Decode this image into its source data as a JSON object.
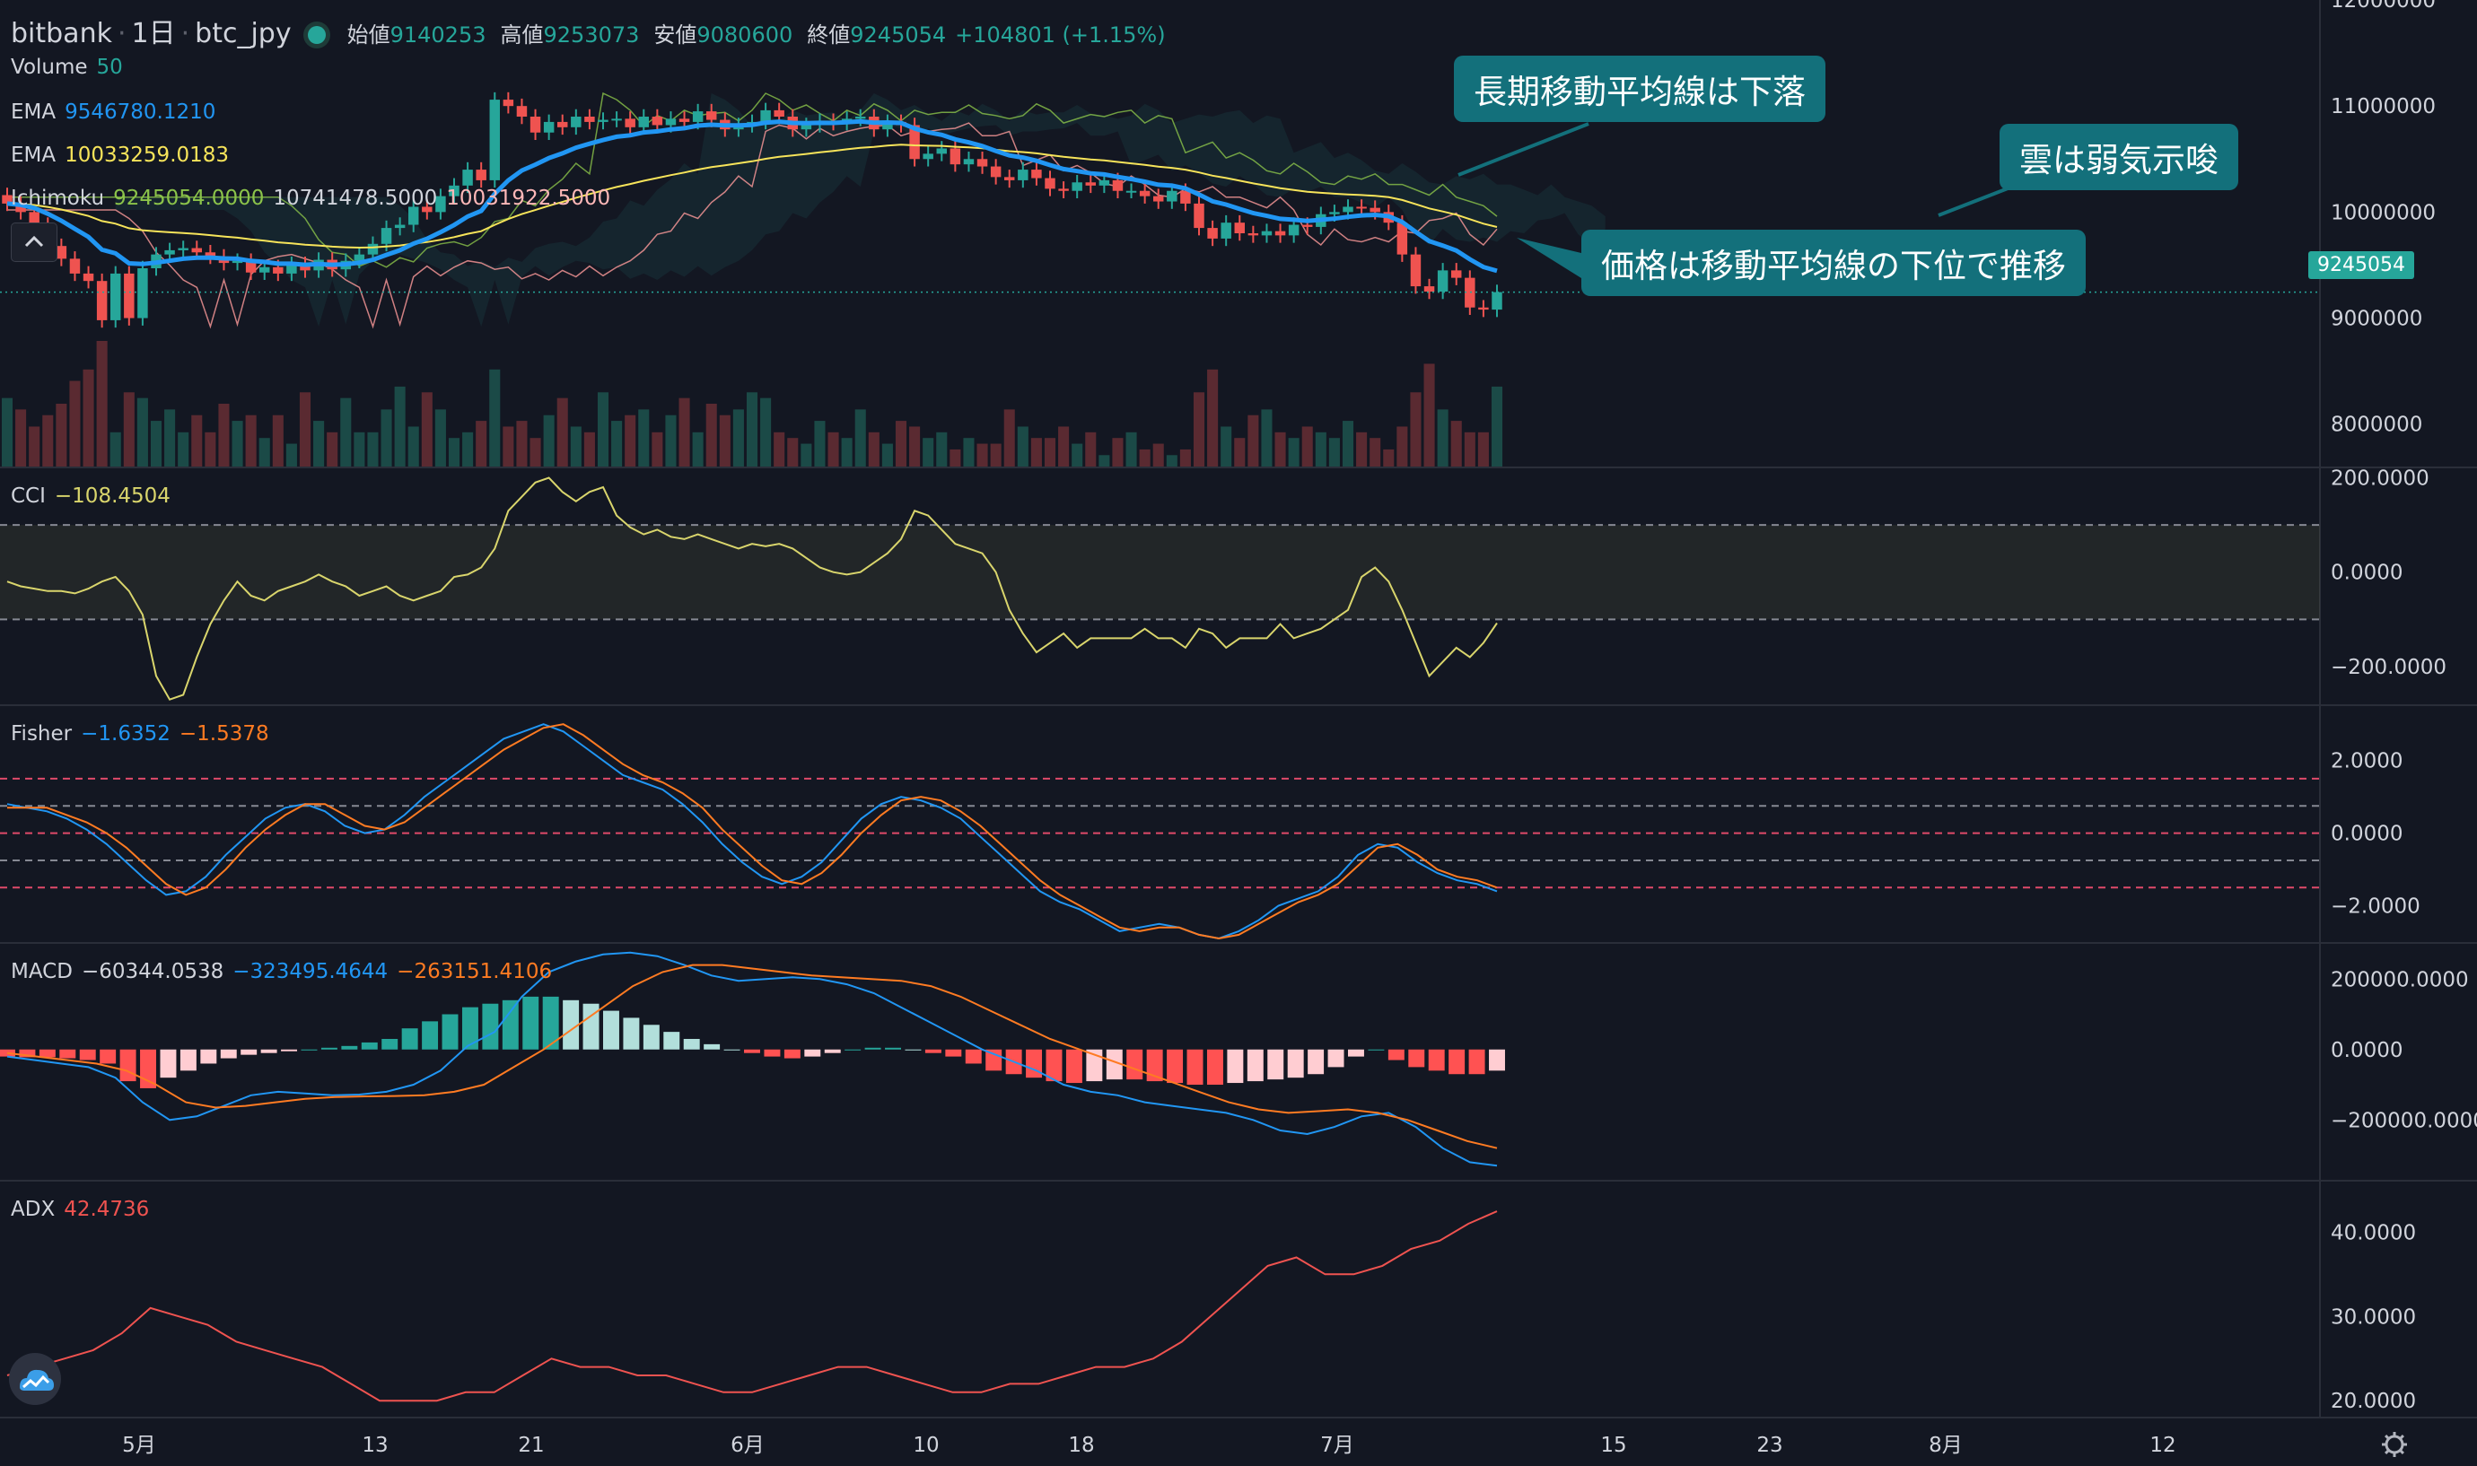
{
  "header": {
    "exchange": "bitbank",
    "interval": "1日",
    "symbol": "btc_jpy",
    "open_label": "始値",
    "open": "9140253",
    "high_label": "高値",
    "high": "9253073",
    "low_label": "安値",
    "low": "9080600",
    "close_label": "終値",
    "close": "9245054",
    "change": "+104801 (+1.15%)"
  },
  "legends": {
    "volume": {
      "name": "Volume",
      "value": "50"
    },
    "ema1": {
      "name": "EMA",
      "value": "9546780.1210"
    },
    "ema2": {
      "name": "EMA",
      "value": "10033259.0183"
    },
    "ichimoku": {
      "name": "Ichimoku",
      "v1": "9245054.0000",
      "v2": "10741478.5000",
      "v3": "10031922.5000"
    },
    "cci": {
      "name": "CCI",
      "value": "−108.4504"
    },
    "fisher": {
      "name": "Fisher",
      "v1": "−1.6352",
      "v2": "−1.5378"
    },
    "macd": {
      "name": "MACD",
      "v1": "−60344.0538",
      "v2": "−323495.4644",
      "v3": "−263151.4106"
    },
    "adx": {
      "name": "ADX",
      "value": "42.4736"
    }
  },
  "annotations": {
    "a1": "長期移動平均線は下落",
    "a2": "雲は弱気示唆",
    "a3": "価格は移動平均線の下位で推移"
  },
  "price_tag": "9245054",
  "colors": {
    "up": "#26a69a",
    "down": "#ef5350",
    "ema_fast": "#2196f3",
    "ema_slow": "#f7e45a",
    "callout": "#13707b",
    "cci": "#d9d56c",
    "fisher_a": "#2196f3",
    "fisher_b": "#ff7b22",
    "adx": "#ef5350",
    "background": "#131722"
  },
  "chart_data": [
    {
      "type": "candlestick",
      "title": "btc_jpy 1日",
      "x_ticks": [
        "5月",
        "13",
        "21",
        "6月",
        "10",
        "18",
        "7月",
        "15",
        "23",
        "8月",
        "12"
      ],
      "y_ticks": [
        "12000000",
        "11000000",
        "10000000",
        "9000000",
        "8000000"
      ],
      "ylim": [
        7600000,
        12000000
      ],
      "close": [
        10080000,
        10000000,
        9880000,
        9680000,
        9560000,
        9420000,
        9350000,
        8980000,
        9420000,
        9000000,
        9470000,
        9600000,
        9640000,
        9660000,
        9620000,
        9580000,
        9520000,
        9540000,
        9430000,
        9480000,
        9420000,
        9510000,
        9450000,
        9550000,
        9460000,
        9540000,
        9600000,
        9700000,
        9850000,
        9880000,
        10050000,
        10000000,
        10150000,
        10250000,
        10400000,
        10300000,
        11060000,
        11000000,
        10900000,
        10750000,
        10850000,
        10800000,
        10900000,
        10850000,
        10870000,
        10880000,
        10800000,
        10900000,
        10820000,
        10880000,
        10850000,
        10950000,
        10870000,
        10780000,
        10820000,
        10850000,
        10960000,
        10900000,
        10780000,
        10820000,
        10860000,
        10840000,
        10880000,
        10900000,
        10780000,
        10850000,
        10820000,
        10500000,
        10550000,
        10600000,
        10450000,
        10500000,
        10430000,
        10330000,
        10300000,
        10400000,
        10320000,
        10220000,
        10200000,
        10280000,
        10250000,
        10300000,
        10200000,
        10200000,
        10150000,
        10100000,
        10200000,
        10080000,
        9850000,
        9750000,
        9900000,
        9800000,
        9780000,
        9820000,
        9780000,
        9880000,
        9860000,
        9980000,
        10000000,
        10050000,
        10040000,
        10000000,
        9900000,
        9600000,
        9300000,
        9250000,
        9450000,
        9380000,
        9100000,
        9080000,
        9245054
      ]
    },
    {
      "type": "bar",
      "title": "Volume 50",
      "values": [
        12,
        10,
        7,
        9,
        11,
        15,
        17,
        22,
        6,
        13,
        12,
        8,
        10,
        6,
        9,
        6,
        11,
        8,
        9,
        5,
        9,
        4,
        13,
        8,
        6,
        12,
        6,
        6,
        10,
        14,
        7,
        13,
        10,
        5,
        6,
        8,
        17,
        7,
        8,
        5,
        9,
        12,
        7,
        6,
        13,
        8,
        9,
        10,
        6,
        9,
        12,
        6,
        11,
        9,
        10,
        13,
        12,
        6,
        5,
        4,
        8,
        6,
        5,
        10,
        6,
        4,
        8,
        7,
        5,
        6,
        3,
        5,
        4,
        4,
        10,
        7,
        5,
        5,
        7,
        4,
        6,
        2,
        5,
        6,
        3,
        4,
        2,
        3,
        13,
        17,
        7,
        5,
        9,
        10,
        6,
        5,
        7,
        6,
        5,
        8,
        6,
        5,
        3,
        7,
        13,
        18,
        10,
        8,
        6,
        6,
        14
      ]
    },
    {
      "type": "line",
      "title": "CCI",
      "y_ticks": [
        "200.0000",
        "0.0000",
        "−200.0000"
      ],
      "ylim": [
        -280,
        220
      ],
      "values": [
        -20,
        -30,
        -35,
        -40,
        -40,
        -45,
        -35,
        -20,
        -10,
        -40,
        -90,
        -220,
        -270,
        -260,
        -180,
        -110,
        -60,
        -20,
        -50,
        -60,
        -40,
        -30,
        -20,
        -5,
        -20,
        -30,
        -50,
        -40,
        -30,
        -50,
        -60,
        -50,
        -40,
        -10,
        -5,
        10,
        50,
        130,
        160,
        190,
        200,
        170,
        150,
        170,
        180,
        120,
        95,
        80,
        90,
        75,
        70,
        80,
        70,
        60,
        50,
        60,
        55,
        60,
        50,
        30,
        10,
        0,
        -5,
        0,
        20,
        40,
        70,
        130,
        120,
        90,
        60,
        50,
        40,
        0,
        -80,
        -130,
        -170,
        -150,
        -130,
        -160,
        -140,
        -140,
        -140,
        -140,
        -120,
        -140,
        -140,
        -160,
        -120,
        -130,
        -160,
        -140,
        -140,
        -140,
        -110,
        -140,
        -130,
        -120,
        -100,
        -80,
        -10,
        10,
        -20,
        -80,
        -150,
        -220,
        -190,
        -160,
        -180,
        -150,
        -108
      ]
    },
    {
      "type": "line",
      "title": "Fisher",
      "y_ticks": [
        "2.0000",
        "0.0000",
        "−2.0000"
      ],
      "ylim": [
        -3,
        3.5
      ],
      "series": [
        {
          "name": "−1.6352",
          "values": [
            0.8,
            0.7,
            0.6,
            0.4,
            0.1,
            -0.3,
            -0.8,
            -1.3,
            -1.7,
            -1.6,
            -1.2,
            -0.6,
            -0.1,
            0.4,
            0.7,
            0.8,
            0.6,
            0.2,
            0,
            0.1,
            0.5,
            1.0,
            1.4,
            1.8,
            2.2,
            2.6,
            2.8,
            3.0,
            2.8,
            2.4,
            2.0,
            1.6,
            1.4,
            1.2,
            0.8,
            0.3,
            -0.3,
            -0.8,
            -1.2,
            -1.4,
            -1.2,
            -0.8,
            -0.2,
            0.4,
            0.8,
            1.0,
            0.9,
            0.7,
            0.4,
            -0.1,
            -0.6,
            -1.1,
            -1.6,
            -1.9,
            -2.1,
            -2.4,
            -2.7,
            -2.6,
            -2.5,
            -2.6,
            -2.8,
            -2.9,
            -2.7,
            -2.4,
            -2.0,
            -1.8,
            -1.6,
            -1.2,
            -0.6,
            -0.3,
            -0.4,
            -0.8,
            -1.1,
            -1.3,
            -1.4,
            -1.6
          ]
        },
        {
          "name": "−1.5378",
          "values": [
            0.7,
            0.7,
            0.7,
            0.5,
            0.3,
            0,
            -0.4,
            -0.9,
            -1.4,
            -1.7,
            -1.5,
            -1.0,
            -0.4,
            0.1,
            0.5,
            0.8,
            0.8,
            0.5,
            0.2,
            0.1,
            0.3,
            0.7,
            1.1,
            1.5,
            1.9,
            2.3,
            2.6,
            2.9,
            3.0,
            2.7,
            2.3,
            1.9,
            1.6,
            1.4,
            1.1,
            0.7,
            0.1,
            -0.4,
            -0.9,
            -1.3,
            -1.4,
            -1.1,
            -0.6,
            0,
            0.5,
            0.9,
            1.0,
            0.9,
            0.6,
            0.2,
            -0.3,
            -0.8,
            -1.3,
            -1.7,
            -2.0,
            -2.3,
            -2.6,
            -2.7,
            -2.6,
            -2.6,
            -2.8,
            -2.9,
            -2.8,
            -2.5,
            -2.2,
            -1.9,
            -1.7,
            -1.4,
            -0.9,
            -0.4,
            -0.3,
            -0.6,
            -1.0,
            -1.2,
            -1.3,
            -1.5
          ]
        }
      ]
    },
    {
      "type": "bar",
      "title": "MACD",
      "y_ticks": [
        "200000.0000",
        "0.0000",
        "−200000.0000"
      ],
      "ylim": [
        -370000,
        300000
      ],
      "histogram": [
        -20000,
        -22000,
        -22000,
        -25000,
        -30000,
        -40000,
        -90000,
        -110000,
        -80000,
        -60000,
        -40000,
        -25000,
        -15000,
        -10000,
        -5000,
        0,
        5000,
        10000,
        20000,
        30000,
        60000,
        80000,
        100000,
        120000,
        130000,
        140000,
        150000,
        150000,
        140000,
        130000,
        110000,
        90000,
        70000,
        50000,
        30000,
        15000,
        0,
        -10000,
        -20000,
        -25000,
        -20000,
        -10000,
        0,
        5000,
        5000,
        0,
        -10000,
        -20000,
        -40000,
        -60000,
        -70000,
        -80000,
        -90000,
        -95000,
        -90000,
        -85000,
        -85000,
        -90000,
        -95000,
        -100000,
        -100000,
        -95000,
        -90000,
        -85000,
        -80000,
        -70000,
        -50000,
        -20000,
        0,
        -30000,
        -50000,
        -60000,
        -70000,
        -70000,
        -60000
      ],
      "series": [
        {
          "name": "−323495.4644",
          "values": [
            -20000,
            -30000,
            -40000,
            -50000,
            -80000,
            -150000,
            -200000,
            -190000,
            -160000,
            -130000,
            -120000,
            -125000,
            -130000,
            -128000,
            -120000,
            -100000,
            -60000,
            10000,
            50000,
            150000,
            220000,
            250000,
            270000,
            275000,
            265000,
            240000,
            210000,
            195000,
            200000,
            205000,
            200000,
            185000,
            160000,
            120000,
            80000,
            40000,
            0,
            -30000,
            -60000,
            -100000,
            -120000,
            -130000,
            -150000,
            -160000,
            -170000,
            -180000,
            -200000,
            -230000,
            -240000,
            -220000,
            -190000,
            -180000,
            -220000,
            -280000,
            -320000,
            -330000
          ]
        },
        {
          "name": "−263151.4106",
          "values": [
            -10000,
            -20000,
            -30000,
            -40000,
            -60000,
            -100000,
            -150000,
            -165000,
            -160000,
            -150000,
            -140000,
            -135000,
            -133000,
            -132000,
            -130000,
            -120000,
            -100000,
            -50000,
            0,
            60000,
            120000,
            180000,
            220000,
            240000,
            240000,
            230000,
            220000,
            210000,
            205000,
            200000,
            195000,
            180000,
            150000,
            110000,
            70000,
            30000,
            0,
            -30000,
            -60000,
            -90000,
            -120000,
            -150000,
            -170000,
            -180000,
            -175000,
            -170000,
            -180000,
            -200000,
            -230000,
            -260000,
            -280000
          ]
        }
      ]
    },
    {
      "type": "line",
      "title": "ADX",
      "y_ticks": [
        "40.0000",
        "30.0000",
        "20.0000"
      ],
      "ylim": [
        18,
        46
      ],
      "values": [
        23,
        24,
        25,
        26,
        28,
        31,
        30,
        29,
        27,
        26,
        25,
        24,
        22,
        20,
        20,
        20,
        21,
        21,
        23,
        25,
        24,
        24,
        23,
        23,
        22,
        21,
        21,
        22,
        23,
        24,
        24,
        23,
        22,
        21,
        21,
        22,
        22,
        23,
        24,
        24,
        25,
        27,
        30,
        33,
        36,
        37,
        35,
        35,
        36,
        38,
        39,
        41,
        42.4736
      ]
    }
  ]
}
